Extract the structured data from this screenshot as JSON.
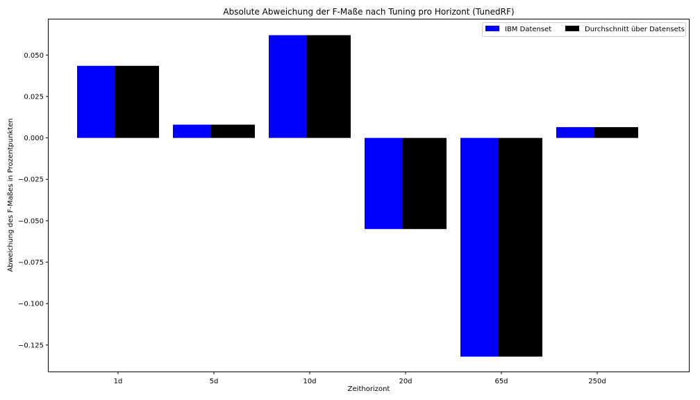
{
  "chart_data": {
    "type": "bar",
    "title": "Absolute Abweichung der F-Maße nach Tuning pro Horizont (TunedRF)",
    "xlabel": "Zeithorizont",
    "ylabel": "Abweichung des F-Maßes in Prozentpunkten",
    "categories": [
      "1d",
      "5d",
      "10d",
      "20d",
      "65d",
      "250d"
    ],
    "series": [
      {
        "name": "IBM Datenset",
        "color": "#0000ff",
        "values": [
          0.0435,
          0.008,
          0.062,
          -0.055,
          -0.132,
          0.0065
        ]
      },
      {
        "name": "Durchschnitt über Datensets",
        "color": "#000000",
        "values": [
          0.0435,
          0.008,
          0.062,
          -0.055,
          -0.132,
          0.0065
        ]
      }
    ],
    "ylim": [
      -0.141,
      0.0715
    ],
    "yticks": [
      0.05,
      0.025,
      0.0,
      -0.025,
      -0.05,
      -0.075,
      -0.1,
      -0.125
    ],
    "ytick_labels": [
      "0.050",
      "0.025",
      "0.000",
      "−0.025",
      "−0.050",
      "−0.075",
      "−0.100",
      "−0.125"
    ],
    "legend_position": "top-right",
    "grid": false
  }
}
